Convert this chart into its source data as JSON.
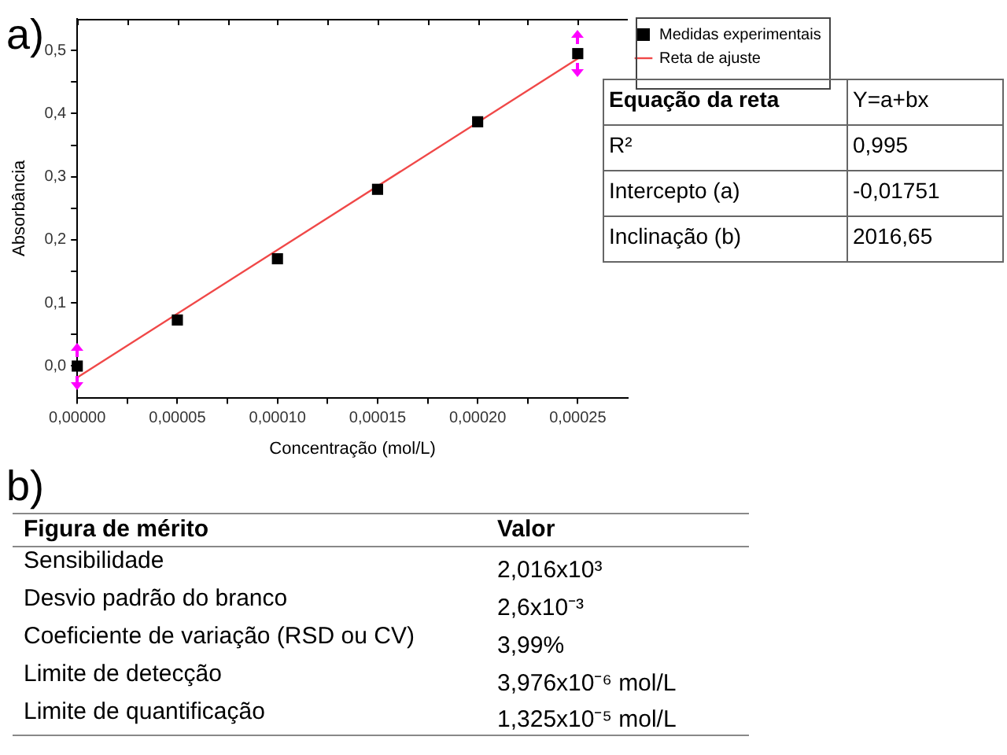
{
  "chart_data": [
    {
      "type": "scatter",
      "title": "a)",
      "xlabel": "Concentração (mol/L)",
      "ylabel": "Absorbância",
      "xlim": [
        0,
        0.000275
      ],
      "ylim": [
        -0.05,
        0.55
      ],
      "xticks": [
        {
          "value": 0,
          "label": "0,00000"
        },
        {
          "value": 2.5e-05,
          "label": null
        },
        {
          "value": 5e-05,
          "label": "0,00005"
        },
        {
          "value": 7.5e-05,
          "label": null
        },
        {
          "value": 0.0001,
          "label": "0,00010"
        },
        {
          "value": 0.000125,
          "label": null
        },
        {
          "value": 0.00015,
          "label": "0,00015"
        },
        {
          "value": 0.000175,
          "label": null
        },
        {
          "value": 0.0002,
          "label": "0,00020"
        },
        {
          "value": 0.000225,
          "label": null
        },
        {
          "value": 0.00025,
          "label": "0,00025"
        }
      ],
      "yticks": [
        {
          "value": 0,
          "label": "0,0"
        },
        {
          "value": 0.05,
          "label": null
        },
        {
          "value": 0.1,
          "label": "0,1"
        },
        {
          "value": 0.15,
          "label": null
        },
        {
          "value": 0.2,
          "label": "0,2"
        },
        {
          "value": 0.25,
          "label": null
        },
        {
          "value": 0.3,
          "label": "0,3"
        },
        {
          "value": 0.35,
          "label": null
        },
        {
          "value": 0.4,
          "label": "0,4"
        },
        {
          "value": 0.45,
          "label": null
        },
        {
          "value": 0.5,
          "label": "0,5"
        }
      ],
      "legend": "right",
      "series": [
        {
          "name": "Medidas experimentais",
          "type": "scatter",
          "marker": "square",
          "color": "#000000",
          "x": [
            0,
            5e-05,
            0.0001,
            0.00015,
            0.0002,
            0.00025
          ],
          "values": [
            0,
            0.073,
            0.17,
            0.28,
            0.387,
            0.495
          ]
        },
        {
          "name": "Reta de ajuste",
          "type": "line",
          "color": "#f04848",
          "x": [
            0,
            0.00025
          ],
          "values": [
            -0.018,
            0.487
          ]
        }
      ],
      "annotations": [
        "Equação da reta",
        "Y=a+bx",
        "R²",
        "0,995",
        "Intercepto (a)",
        "-0,01751",
        "Inclinação (b)",
        "2016,65"
      ]
    },
    {
      "type": "other",
      "title": "b)",
      "annotations": [
        "Figura de mérito",
        "Valor",
        "Sensibilidade",
        "2,016x10³",
        "Desvio padrão do branco",
        "2,6x10⁻³",
        "Coeficiente de variação (RSD ou CV)",
        "3,99%",
        "Limite de detecção",
        "3,976x10⁻⁶ mol/L",
        "Limite de quantificação",
        "1,325x10⁻⁵ mol/L"
      ]
    }
  ]
}
